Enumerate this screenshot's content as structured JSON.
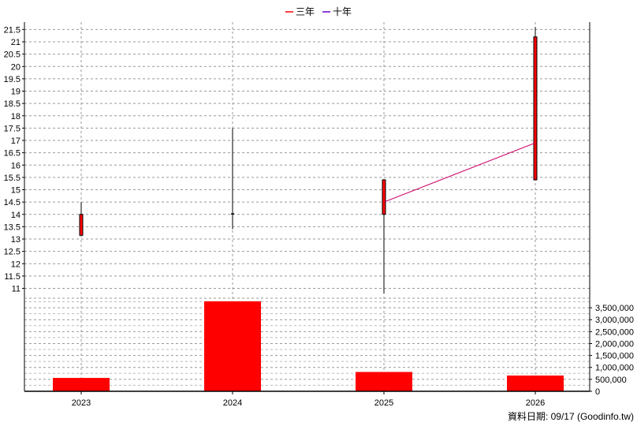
{
  "chart_data": [
    {
      "type": "candlestick",
      "legend": [
        {
          "name": "三年",
          "color": "#ff0000"
        },
        {
          "name": "十年",
          "color": "#6600cc"
        }
      ],
      "categories": [
        "2023",
        "2024",
        "2025",
        "2026"
      ],
      "ylim": [
        10.6,
        21.8
      ],
      "yticks": [
        11,
        11.5,
        12,
        12.5,
        13,
        13.5,
        14,
        14.5,
        15,
        15.5,
        16,
        16.5,
        17,
        17.5,
        18,
        18.5,
        19,
        19.5,
        20,
        20.5,
        21,
        21.5
      ],
      "candles": [
        {
          "x": "2023",
          "open": 14.0,
          "close": 13.15,
          "high": 14.5,
          "low": 13.15
        },
        {
          "x": "2024",
          "open": 14.02,
          "close": 14.02,
          "high": 17.5,
          "low": 13.4
        },
        {
          "x": "2025",
          "open": 15.4,
          "close": 14.0,
          "high": 15.4,
          "low": 10.8
        },
        {
          "x": "2026",
          "open": 21.2,
          "close": 15.4,
          "high": 21.6,
          "low": 15.4
        }
      ],
      "series": [
        {
          "name": "三年",
          "color": "#cc0066",
          "points": [
            {
              "x": "2025",
              "y": 14.5
            },
            {
              "x": "2026",
              "y": 16.9
            }
          ]
        }
      ],
      "grid": true
    },
    {
      "type": "bar",
      "categories": [
        "2023",
        "2024",
        "2025",
        "2026"
      ],
      "values": [
        560000,
        3770000,
        810000,
        660000
      ],
      "ylim": [
        0,
        3900000
      ],
      "yticks": [
        0,
        500000,
        1000000,
        1500000,
        2000000,
        2500000,
        3000000,
        3500000
      ],
      "ytick_labels": [
        "0",
        "500,000",
        "1,000,000",
        "1,500,000",
        "2,000,000",
        "2,500,000",
        "3,000,000",
        "3,500,000"
      ],
      "color": "#ff0000",
      "grid": true
    }
  ],
  "footer": {
    "text": "資料日期: 09/17  (Goodinfo.tw)"
  }
}
